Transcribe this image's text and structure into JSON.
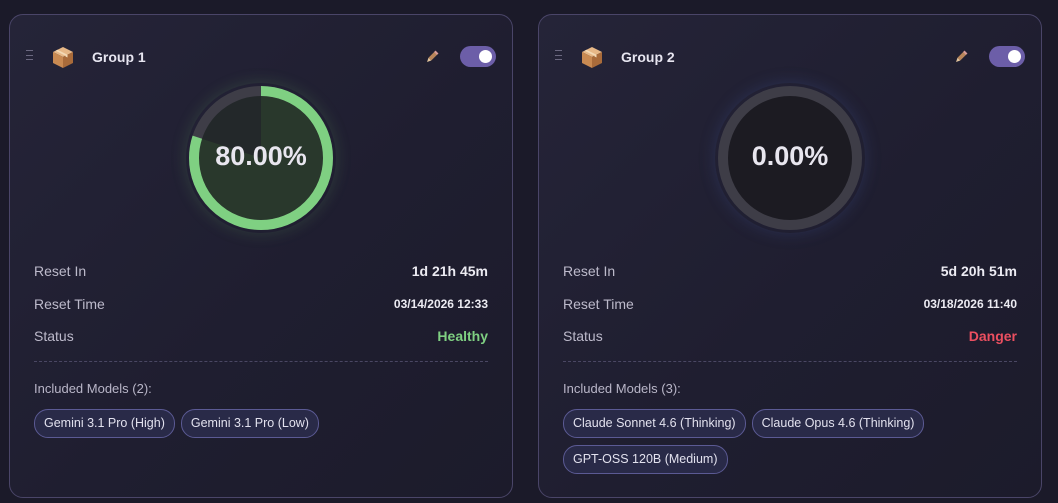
{
  "colors": {
    "healthy": "#7fd082",
    "danger": "#ec4f60",
    "toggle_on": "#6c5ea8",
    "gauge_track": "#3e3d47",
    "gauge_fill_bg": "#23282a"
  },
  "icons": {
    "drag": "drag-handle-icon",
    "group": "package-box-icon",
    "edit": "pencil-icon"
  },
  "labels": {
    "reset_in": "Reset In",
    "reset_time": "Reset Time",
    "status": "Status"
  },
  "groups": [
    {
      "name": "Group 1",
      "enabled": true,
      "usage_percent": 80,
      "usage_text": "80.00%",
      "reset_in": "1d 21h 45m",
      "reset_time": "03/14/2026 12:33",
      "status": "Healthy",
      "status_kind": "healthy",
      "models_label": "Included Models (2):",
      "models": [
        "Gemini 3.1 Pro (High)",
        "Gemini 3.1 Pro (Low)"
      ]
    },
    {
      "name": "Group 2",
      "enabled": true,
      "usage_percent": 0,
      "usage_text": "0.00%",
      "reset_in": "5d 20h 51m",
      "reset_time": "03/18/2026 11:40",
      "status": "Danger",
      "status_kind": "danger",
      "models_label": "Included Models (3):",
      "models": [
        "Claude Sonnet 4.6 (Thinking)",
        "Claude Opus 4.6 (Thinking)",
        "GPT-OSS 120B (Medium)"
      ]
    }
  ]
}
